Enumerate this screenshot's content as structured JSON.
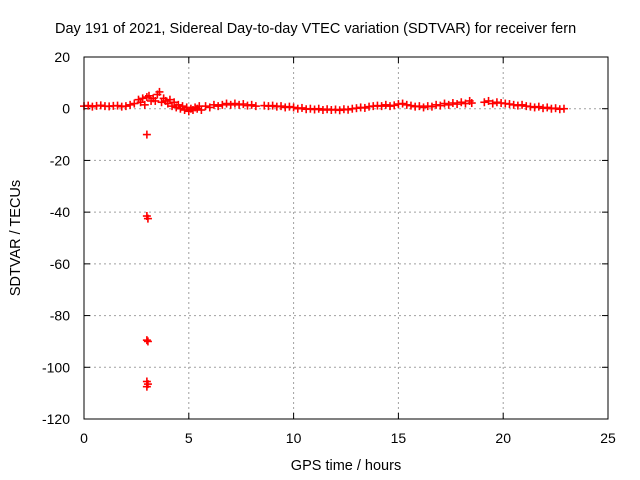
{
  "chart_data": {
    "type": "scatter",
    "title": "Day 191 of 2021, Sidereal Day-to-day VTEC variation (SDTVAR) for receiver fern",
    "xlabel": "GPS time / hours",
    "ylabel": "SDTVAR / TECUs",
    "xlim": [
      0,
      25
    ],
    "ylim": [
      -120,
      20
    ],
    "xticks": [
      0,
      5,
      10,
      15,
      20,
      25
    ],
    "yticks": [
      20,
      0,
      -20,
      -40,
      -60,
      -80,
      -100,
      -120
    ],
    "grid": true,
    "marker": "+",
    "color": "#ff0000",
    "series": [
      {
        "name": "SDTVAR",
        "points": [
          [
            0.0,
            1.0
          ],
          [
            0.2,
            1.2
          ],
          [
            0.4,
            0.8
          ],
          [
            0.6,
            1.1
          ],
          [
            0.8,
            1.3
          ],
          [
            1.0,
            1.0
          ],
          [
            1.2,
            0.9
          ],
          [
            1.4,
            1.1
          ],
          [
            1.6,
            1.2
          ],
          [
            1.8,
            0.8
          ],
          [
            2.0,
            1.0
          ],
          [
            2.2,
            1.5
          ],
          [
            2.4,
            2.0
          ],
          [
            2.6,
            3.5
          ],
          [
            2.7,
            2.5
          ],
          [
            2.8,
            4.0
          ],
          [
            2.9,
            1.5
          ],
          [
            3.0,
            4.5
          ],
          [
            3.0,
            -10.0
          ],
          [
            3.0,
            -41.5
          ],
          [
            3.05,
            -42.5
          ],
          [
            3.0,
            -89.5
          ],
          [
            3.05,
            -90.0
          ],
          [
            3.0,
            -105.5
          ],
          [
            3.05,
            -106.5
          ],
          [
            3.0,
            -107.5
          ],
          [
            3.1,
            5.0
          ],
          [
            3.2,
            3.0
          ],
          [
            3.3,
            4.0
          ],
          [
            3.4,
            3.0
          ],
          [
            3.5,
            5.5
          ],
          [
            3.6,
            6.5
          ],
          [
            3.7,
            2.5
          ],
          [
            3.8,
            4.0
          ],
          [
            3.9,
            3.0
          ],
          [
            4.0,
            2.0
          ],
          [
            4.1,
            3.5
          ],
          [
            4.2,
            1.0
          ],
          [
            4.3,
            2.5
          ],
          [
            4.4,
            0.5
          ],
          [
            4.5,
            1.5
          ],
          [
            4.6,
            0.0
          ],
          [
            4.7,
            1.0
          ],
          [
            4.8,
            -0.5
          ],
          [
            4.9,
            0.5
          ],
          [
            5.0,
            -1.0
          ],
          [
            5.1,
            0.0
          ],
          [
            5.2,
            -0.5
          ],
          [
            5.3,
            0.5
          ],
          [
            5.4,
            0.0
          ],
          [
            5.5,
            1.0
          ],
          [
            5.6,
            -0.5
          ],
          [
            5.8,
            1.0
          ],
          [
            6.0,
            0.5
          ],
          [
            6.2,
            1.5
          ],
          [
            6.4,
            1.0
          ],
          [
            6.6,
            1.5
          ],
          [
            6.8,
            2.0
          ],
          [
            7.0,
            1.5
          ],
          [
            7.2,
            2.0
          ],
          [
            7.4,
            1.5
          ],
          [
            7.6,
            1.8
          ],
          [
            7.8,
            1.2
          ],
          [
            8.0,
            1.5
          ],
          [
            8.2,
            1.0
          ],
          [
            8.6,
            1.2
          ],
          [
            8.8,
            1.0
          ],
          [
            9.0,
            1.2
          ],
          [
            9.2,
            0.8
          ],
          [
            9.4,
            1.0
          ],
          [
            9.6,
            0.5
          ],
          [
            9.8,
            0.8
          ],
          [
            10.0,
            0.5
          ],
          [
            10.2,
            0.0
          ],
          [
            10.4,
            0.3
          ],
          [
            10.6,
            -0.2
          ],
          [
            10.8,
            0.0
          ],
          [
            11.0,
            -0.3
          ],
          [
            11.2,
            0.0
          ],
          [
            11.4,
            -0.5
          ],
          [
            11.6,
            -0.2
          ],
          [
            11.8,
            -0.5
          ],
          [
            12.0,
            -0.3
          ],
          [
            12.2,
            -0.6
          ],
          [
            12.4,
            -0.2
          ],
          [
            12.6,
            -0.4
          ],
          [
            12.8,
            0.0
          ],
          [
            13.0,
            0.2
          ],
          [
            13.2,
            0.5
          ],
          [
            13.4,
            0.3
          ],
          [
            13.6,
            0.8
          ],
          [
            13.8,
            1.0
          ],
          [
            14.0,
            1.2
          ],
          [
            14.2,
            1.0
          ],
          [
            14.4,
            1.5
          ],
          [
            14.6,
            1.0
          ],
          [
            14.8,
            1.3
          ],
          [
            15.0,
            1.8
          ],
          [
            15.2,
            2.0
          ],
          [
            15.4,
            1.5
          ],
          [
            15.6,
            1.2
          ],
          [
            15.8,
            0.8
          ],
          [
            16.0,
            1.0
          ],
          [
            16.2,
            0.5
          ],
          [
            16.4,
            1.0
          ],
          [
            16.6,
            0.8
          ],
          [
            16.8,
            1.5
          ],
          [
            17.0,
            1.2
          ],
          [
            17.2,
            2.0
          ],
          [
            17.4,
            1.5
          ],
          [
            17.6,
            2.2
          ],
          [
            17.8,
            1.8
          ],
          [
            18.0,
            2.5
          ],
          [
            18.2,
            2.0
          ],
          [
            18.4,
            3.0
          ],
          [
            18.5,
            2.2
          ],
          [
            19.1,
            2.5
          ],
          [
            19.3,
            3.0
          ],
          [
            19.5,
            2.0
          ],
          [
            19.7,
            2.5
          ],
          [
            19.9,
            2.2
          ],
          [
            20.1,
            2.0
          ],
          [
            20.3,
            1.8
          ],
          [
            20.5,
            1.5
          ],
          [
            20.7,
            1.2
          ],
          [
            20.9,
            1.5
          ],
          [
            21.1,
            1.0
          ],
          [
            21.3,
            0.8
          ],
          [
            21.5,
            0.5
          ],
          [
            21.7,
            0.8
          ],
          [
            21.9,
            0.2
          ],
          [
            22.1,
            0.5
          ],
          [
            22.3,
            0.0
          ],
          [
            22.5,
            0.2
          ],
          [
            22.7,
            -0.2
          ],
          [
            22.9,
            0.0
          ]
        ]
      }
    ]
  }
}
